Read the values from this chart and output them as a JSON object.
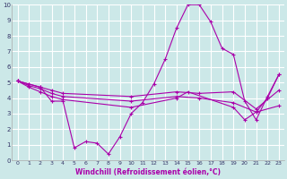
{
  "xlabel": "Windchill (Refroidissement éolien,°C)",
  "xlim": [
    -0.5,
    23.5
  ],
  "ylim": [
    0,
    10
  ],
  "xticks": [
    0,
    1,
    2,
    3,
    4,
    5,
    6,
    7,
    8,
    9,
    10,
    11,
    12,
    13,
    14,
    15,
    16,
    17,
    18,
    19,
    20,
    21,
    22,
    23
  ],
  "yticks": [
    0,
    1,
    2,
    3,
    4,
    5,
    6,
    7,
    8,
    9,
    10
  ],
  "bg_color": "#cce8e8",
  "line_color": "#aa00aa",
  "grid_color": "#ffffff",
  "lines": [
    {
      "x": [
        0,
        1,
        2,
        3,
        4,
        5,
        6,
        7,
        8,
        9,
        10,
        11,
        12,
        13,
        14,
        15,
        16,
        17,
        18,
        19,
        20,
        21,
        22,
        23
      ],
      "y": [
        5.1,
        4.9,
        4.7,
        3.8,
        3.8,
        0.8,
        1.2,
        1.1,
        0.4,
        1.5,
        3.0,
        3.7,
        4.9,
        6.5,
        8.5,
        10.0,
        10.0,
        8.9,
        7.2,
        6.8,
        3.8,
        2.6,
        4.1,
        5.5
      ]
    },
    {
      "x": [
        0,
        1,
        2,
        3,
        4,
        10,
        14,
        16,
        19,
        21,
        23
      ],
      "y": [
        5.1,
        4.9,
        4.7,
        4.5,
        4.3,
        4.1,
        4.4,
        4.3,
        4.4,
        3.3,
        4.5
      ]
    },
    {
      "x": [
        0,
        1,
        2,
        3,
        4,
        10,
        14,
        16,
        19,
        21,
        23
      ],
      "y": [
        5.1,
        4.8,
        4.6,
        4.3,
        4.1,
        3.8,
        4.1,
        4.0,
        3.7,
        3.1,
        3.5
      ]
    },
    {
      "x": [
        0,
        1,
        2,
        3,
        4,
        10,
        14,
        15,
        19,
        20,
        21,
        22,
        23
      ],
      "y": [
        5.1,
        4.7,
        4.4,
        4.1,
        3.9,
        3.4,
        4.0,
        4.4,
        3.4,
        2.6,
        3.1,
        4.0,
        5.5
      ]
    }
  ]
}
